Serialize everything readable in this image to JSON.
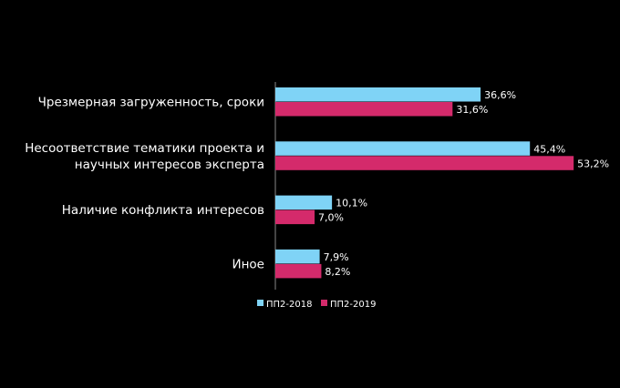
{
  "chart_data": {
    "type": "bar",
    "orientation": "horizontal",
    "categories": [
      [
        "Чрезмерная загруженность, сроки"
      ],
      [
        "Несоответствие тематики проекта и",
        "научных интересов эксперта"
      ],
      [
        "Наличие конфликта интересов"
      ],
      [
        "Иное"
      ]
    ],
    "series": [
      {
        "name": "ПП2-2018",
        "color": "#7fd3f6",
        "values": [
          36.6,
          45.4,
          10.1,
          7.9
        ],
        "labels": [
          "36,6%",
          "45,4%",
          "10,1%",
          "7,9%"
        ]
      },
      {
        "name": "ПП2-2019",
        "color": "#d42a6b",
        "values": [
          31.6,
          53.2,
          7.0,
          8.2
        ],
        "labels": [
          "31,6%",
          "53,2%",
          "7,0%",
          "8,2%"
        ]
      }
    ],
    "xlim": [
      0,
      55
    ],
    "legend": "bottom",
    "grid": false
  }
}
